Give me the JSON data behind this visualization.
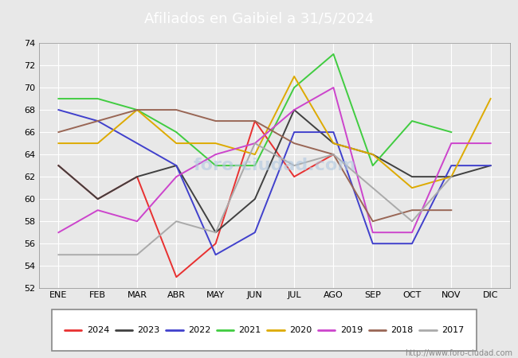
{
  "title": "Afiliados en Gaibiel a 31/5/2024",
  "header_color": "#4d7ebf",
  "months": [
    "ENE",
    "FEB",
    "MAR",
    "ABR",
    "MAY",
    "JUN",
    "JUL",
    "AGO",
    "SEP",
    "OCT",
    "NOV",
    "DIC"
  ],
  "ylim": [
    52,
    74
  ],
  "yticks": [
    52,
    54,
    56,
    58,
    60,
    62,
    64,
    66,
    68,
    70,
    72,
    74
  ],
  "series": {
    "2024": {
      "color": "#e83030",
      "data": [
        63,
        60,
        62,
        53,
        56,
        67,
        62,
        64,
        null,
        null,
        null,
        null
      ]
    },
    "2023": {
      "color": "#404040",
      "data": [
        63,
        60,
        62,
        63,
        57,
        60,
        68,
        65,
        64,
        62,
        62,
        63
      ]
    },
    "2022": {
      "color": "#4040cc",
      "data": [
        68,
        67,
        65,
        63,
        55,
        57,
        66,
        66,
        56,
        56,
        63,
        63
      ]
    },
    "2021": {
      "color": "#40cc40",
      "data": [
        69,
        69,
        68,
        66,
        63,
        63,
        70,
        73,
        63,
        67,
        66,
        null
      ]
    },
    "2020": {
      "color": "#ddaa00",
      "data": [
        65,
        65,
        68,
        65,
        65,
        64,
        71,
        65,
        64,
        61,
        62,
        69
      ]
    },
    "2019": {
      "color": "#cc44cc",
      "data": [
        57,
        59,
        58,
        62,
        64,
        65,
        68,
        70,
        57,
        57,
        65,
        65
      ]
    },
    "2018": {
      "color": "#996655",
      "data": [
        66,
        67,
        68,
        68,
        67,
        67,
        65,
        64,
        58,
        59,
        59,
        null
      ]
    },
    "2017": {
      "color": "#aaaaaa",
      "data": [
        55,
        55,
        55,
        58,
        57,
        65,
        63,
        64,
        null,
        58,
        62,
        null
      ]
    }
  },
  "watermark": "foro-ciudad.com",
  "url": "http://www.foro-ciudad.com",
  "fig_bg": "#e8e8e8",
  "plot_bg": "#e8e8e8",
  "grid_color": "#ffffff"
}
